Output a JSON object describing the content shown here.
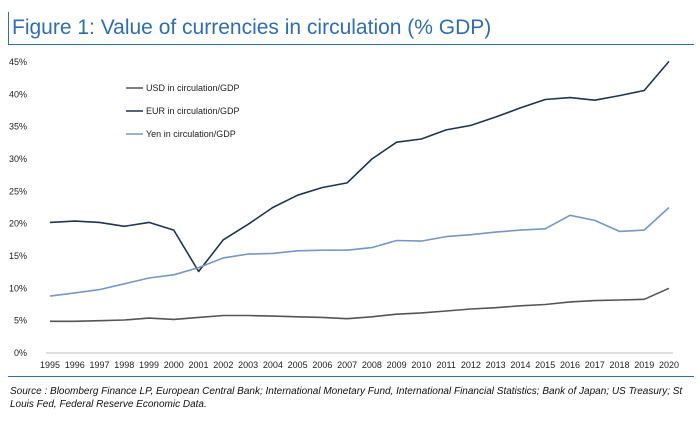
{
  "figure": {
    "title": "Figure 1: Value of currencies in circulation (% GDP)",
    "source": "Source : Bloomberg Finance LP, European Central Bank; International Monetary Fund, International Financial Statistics; Bank of Japan; US Treasury; St Louis Fed, Federal Reserve Economic Data."
  },
  "colors": {
    "title": "#2f6db5",
    "usd": "#555555",
    "eur": "#1f3552",
    "yen": "#7697c7"
  },
  "chart_data": {
    "type": "line",
    "title": "Figure 1: Value of currencies in circulation (% GDP)",
    "xlabel": "",
    "ylabel": "",
    "ylim": [
      0,
      45
    ],
    "yticks": [
      "0%",
      "5%",
      "10%",
      "15%",
      "20%",
      "25%",
      "30%",
      "35%",
      "40%",
      "45%"
    ],
    "x": [
      "1995",
      "1996",
      "1997",
      "1998",
      "1999",
      "2000",
      "2001",
      "2002",
      "2003",
      "2004",
      "2005",
      "2006",
      "2007",
      "2008",
      "2009",
      "2010",
      "2011",
      "2012",
      "2013",
      "2014",
      "2015",
      "2016",
      "2017",
      "2018",
      "2019",
      "2020"
    ],
    "legend_position": "top-left",
    "grid": false,
    "series": [
      {
        "name": "USD in circulation/GDP",
        "color": "#555555",
        "values": [
          4.9,
          4.9,
          5.0,
          5.1,
          5.4,
          5.2,
          5.5,
          5.8,
          5.8,
          5.7,
          5.6,
          5.5,
          5.3,
          5.6,
          6.0,
          6.2,
          6.5,
          6.8,
          7.0,
          7.3,
          7.5,
          7.9,
          8.1,
          8.2,
          8.3,
          10.0
        ]
      },
      {
        "name": "EUR in circulation/GDP",
        "color": "#1f3552",
        "values": [
          20.2,
          20.4,
          20.2,
          19.6,
          20.2,
          19.0,
          12.6,
          17.5,
          19.9,
          22.5,
          24.4,
          25.6,
          26.3,
          30.0,
          32.6,
          33.1,
          34.5,
          35.2,
          36.5,
          37.9,
          39.2,
          39.5,
          39.1,
          39.8,
          40.6,
          45.1
        ]
      },
      {
        "name": "Yen in circulation/GDP",
        "color": "#7697c7",
        "values": [
          8.8,
          9.3,
          9.8,
          10.7,
          11.6,
          12.1,
          13.2,
          14.7,
          15.3,
          15.4,
          15.8,
          15.9,
          15.9,
          16.3,
          17.4,
          17.3,
          18.0,
          18.3,
          18.7,
          19.0,
          19.2,
          21.3,
          20.5,
          18.8,
          19.0,
          22.5
        ]
      }
    ]
  }
}
